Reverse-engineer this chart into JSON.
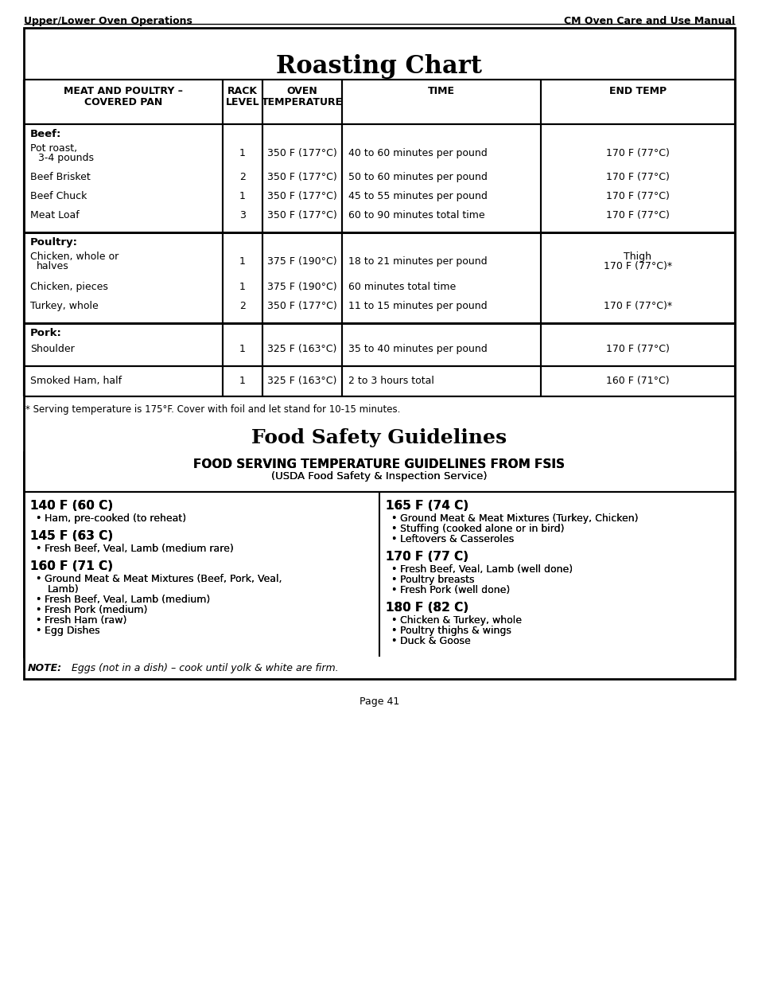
{
  "page_header_left": "Upper/Lower Oven Operations",
  "page_header_right": "CM Oven Care and Use Manual",
  "roasting_title": "Roasting Chart",
  "footnote": "* Serving temperature is 175°F. Cover with foil and let stand for 10-15 minutes.",
  "food_safety_title": "Food Safety Guidelines",
  "fsis_header": "FOOD SERVING TEMPERATURE GUIDELINES FROM FSIS",
  "fsis_subheader": "(USDA Food Safety & Inspection Service)",
  "left_column": [
    {
      "temp": "140 F (60 C)",
      "items": [
        "Ham, pre-cooked (to reheat)"
      ]
    },
    {
      "temp": "145 F (63 C)",
      "items": [
        "Fresh Beef, Veal, Lamb (medium rare)"
      ]
    },
    {
      "temp": "160 F (71 C)",
      "items": [
        "Ground Meat & Meat Mixtures (Beef, Pork, Veal,",
        "Lamb)",
        "Fresh Beef, Veal, Lamb (medium)",
        "Fresh Pork (medium)",
        "Fresh Ham (raw)",
        "Egg Dishes"
      ]
    }
  ],
  "right_column": [
    {
      "temp": "165 F (74 C)",
      "items": [
        "Ground Meat & Meat Mixtures (Turkey, Chicken)",
        "Stuffing (cooked alone or in bird)",
        "Leftovers & Casseroles"
      ]
    },
    {
      "temp": "170 F (77 C)",
      "items": [
        "Fresh Beef, Veal, Lamb (well done)",
        "Poultry breasts",
        "Fresh Pork (well done)"
      ]
    },
    {
      "temp": "180 F (82 C)",
      "items": [
        "Chicken & Turkey, whole",
        "Poultry thighs & wings",
        "Duck & Goose"
      ]
    }
  ],
  "note_bold": "NOTE:",
  "note_italic": "  Eggs (not in a dish) – cook until yolk & white are firm.",
  "page_number": "Page 41",
  "bg_color": "#ffffff"
}
